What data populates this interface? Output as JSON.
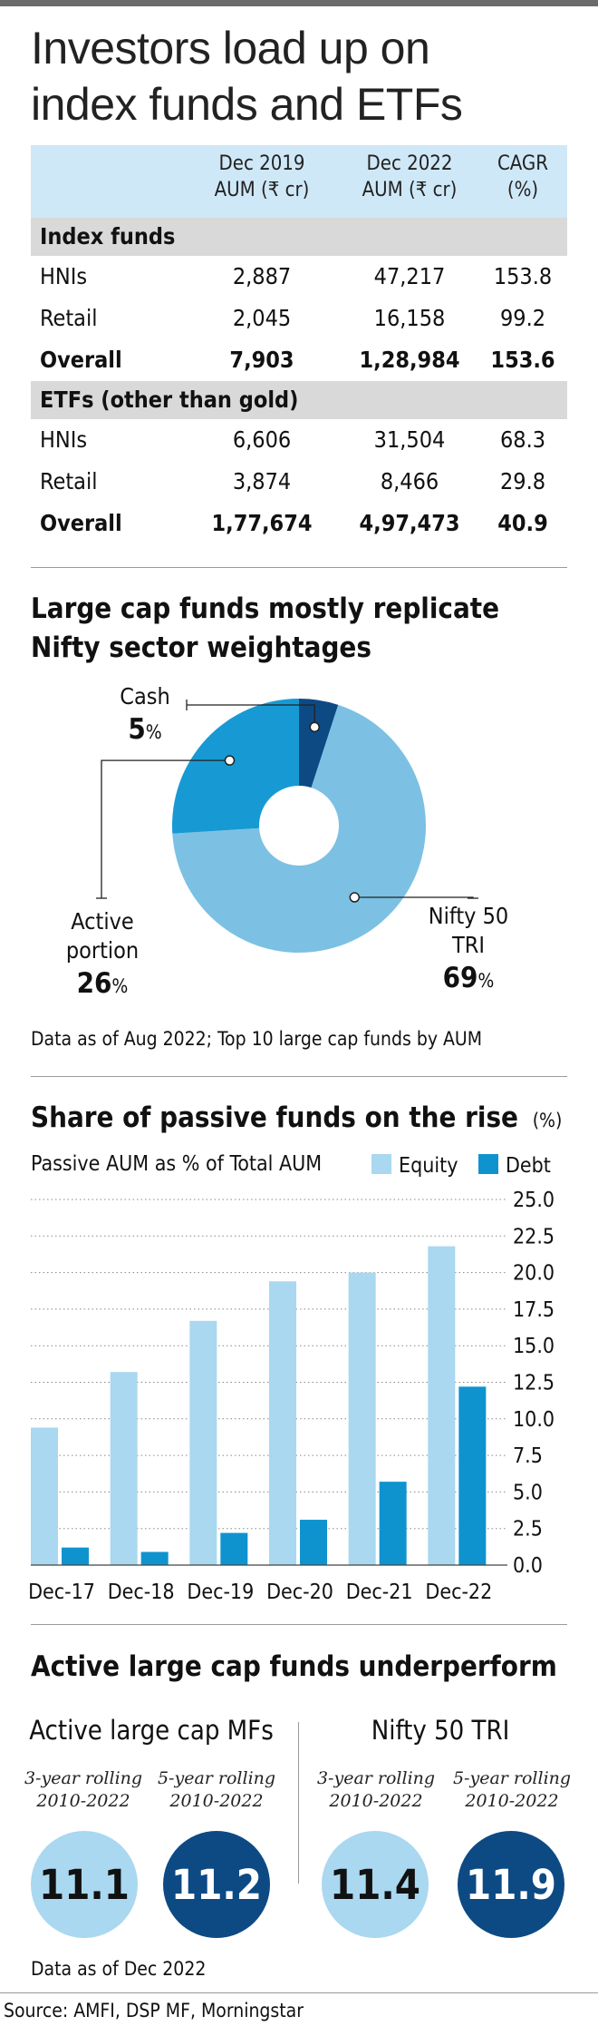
{
  "title": "Investors load up on index funds and ETFs",
  "table": {
    "headers": [
      "Dec 2019\nAUM (₹ cr)",
      "Dec 2022\nAUM (₹ cr)",
      "CAGR\n(%)"
    ],
    "header_lines": [
      [
        "Dec 2019",
        "AUM (₹ cr)"
      ],
      [
        "Dec 2022",
        "AUM (₹ cr)"
      ],
      [
        "CAGR",
        "(%)"
      ]
    ],
    "sections": [
      {
        "name": "Index funds",
        "rows": [
          {
            "label": "HNIs",
            "v1": "2,887",
            "v2": "47,217",
            "v3": "153.8",
            "bold": false
          },
          {
            "label": "Retail",
            "v1": "2,045",
            "v2": "16,158",
            "v3": "99.2",
            "bold": false
          },
          {
            "label": "Overall",
            "v1": "7,903",
            "v2": "1,28,984",
            "v3": "153.6",
            "bold": true
          }
        ]
      },
      {
        "name": "ETFs (other than gold)",
        "rows": [
          {
            "label": "HNIs",
            "v1": "6,606",
            "v2": "31,504",
            "v3": "68.3",
            "bold": false
          },
          {
            "label": "Retail",
            "v1": "3,874",
            "v2": "8,466",
            "v3": "29.8",
            "bold": false
          },
          {
            "label": "Overall",
            "v1": "1,77,674",
            "v2": "4,97,473",
            "v3": "40.9",
            "bold": true
          }
        ]
      }
    ]
  },
  "donut": {
    "title_line1": "Large cap funds mostly replicate",
    "title_line2": "Nifty sector weightages",
    "cash_label": "Cash",
    "cash_value": "5",
    "active_label_line1": "Active",
    "active_label_line2": "portion",
    "active_value": "26",
    "nifty_label_line1": "Nifty 50",
    "nifty_label_line2": "TRI",
    "nifty_value": "69",
    "pct_sign": "%",
    "note": "Data as of Aug 2022; Top 10 large cap funds by AUM"
  },
  "bars": {
    "title": "Share of passive funds on the rise",
    "unit": "(%)",
    "subtitle": "Passive AUM as % of Total AUM"
  },
  "perf": {
    "title": "Active large cap funds underperform",
    "left_heading": "Active large cap MFs",
    "right_heading": "Nifty 50 TRI",
    "periods": [
      {
        "line1": "3-year rolling",
        "line2": "2010-2022",
        "value": "11.1"
      },
      {
        "line1": "5-year rolling",
        "line2": "2010-2022",
        "value": "11.2"
      },
      {
        "line1": "3-year rolling",
        "line2": "2010-2022",
        "value": "11.4"
      },
      {
        "line1": "5-year rolling",
        "line2": "2010-2022",
        "value": "11.9"
      }
    ],
    "note": "Data as of Dec 2022"
  },
  "source": "Source: AMFI, DSP MF, Morningstar",
  "colors": {
    "light_blue": "#a9d8f0",
    "mid_blue": "#0f93cf",
    "dark_blue": "#0d4a84",
    "donut_light": "#7cc1e3",
    "donut_mid": "#179ad3",
    "header_bg": "#cfe8f7",
    "section_bg": "#d9d9d9"
  },
  "chart_data": [
    {
      "type": "pie",
      "title": "Large cap funds mostly replicate Nifty sector weightages",
      "categories": [
        "Nifty 50 TRI",
        "Active portion",
        "Cash"
      ],
      "values": [
        69,
        26,
        5
      ],
      "unit": "%"
    },
    {
      "type": "bar",
      "title": "Share of passive funds on the rise",
      "ylabel": "(%)",
      "categories": [
        "Dec-17",
        "Dec-18",
        "Dec-19",
        "Dec-20",
        "Dec-21",
        "Dec-22"
      ],
      "series": [
        {
          "name": "Equity",
          "values": [
            9.4,
            13.2,
            16.7,
            19.4,
            20.0,
            21.8
          ]
        },
        {
          "name": "Debt",
          "values": [
            1.2,
            0.9,
            2.2,
            3.1,
            5.7,
            12.2
          ]
        }
      ],
      "ylim": [
        0,
        25
      ],
      "yticks": [
        "25.0",
        "22.5",
        "20.0",
        "17.5",
        "15.0",
        "12.5",
        "10.0",
        "7.5",
        "5.0",
        "2.5",
        "0.0"
      ],
      "grid": true,
      "legend": "top-right"
    }
  ]
}
